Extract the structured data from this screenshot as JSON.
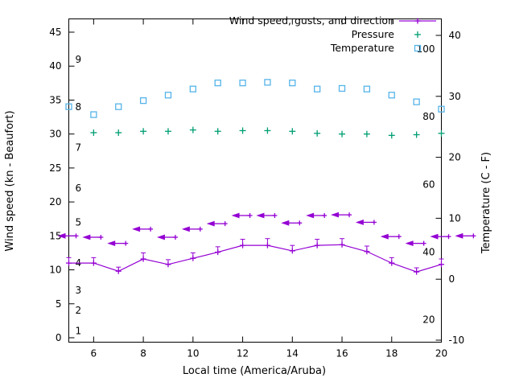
{
  "chart_data": {
    "type": "line",
    "xlabel": "Local time (America/Aruba)",
    "ylabel_left": "Wind speed (kn - Beaufort)",
    "ylabel_right": "Temperature (C - F)",
    "xlim": [
      5,
      20
    ],
    "x_ticks": [
      6,
      8,
      10,
      12,
      14,
      16,
      18,
      20
    ],
    "grid": false,
    "background": "#ffffff",
    "border_color": "#000000",
    "wind_axis": {
      "ticks": [
        0,
        5,
        10,
        15,
        20,
        25,
        30,
        35,
        40,
        45
      ],
      "range": [
        0,
        45
      ]
    },
    "beaufort_scale": [
      {
        "label": "1",
        "kn": 1
      },
      {
        "label": "2",
        "kn": 4
      },
      {
        "label": "3",
        "kn": 7
      },
      {
        "label": "4",
        "kn": 11
      },
      {
        "label": "5",
        "kn": 17
      },
      {
        "label": "6",
        "kn": 22
      },
      {
        "label": "7",
        "kn": 28
      },
      {
        "label": "8",
        "kn": 34
      },
      {
        "label": "9",
        "kn": 41
      }
    ],
    "temp_axis": {
      "ticks_c": [
        -10,
        0,
        10,
        20,
        30,
        40
      ],
      "range_c": [
        -10,
        40
      ]
    },
    "fahrenheit_scale": [
      {
        "label": "20",
        "f": 20
      },
      {
        "label": "40",
        "f": 40
      },
      {
        "label": "60",
        "f": 60
      },
      {
        "label": "80",
        "f": 80
      },
      {
        "label": "100",
        "f": 100
      }
    ],
    "legend": {
      "position": "top-right",
      "entries": [
        "Wind speed, gusts, and direction",
        "Pressure",
        "Temperature"
      ]
    },
    "series": [
      {
        "name": "Wind speed, gusts, and direction",
        "color": "#9400d3",
        "axis": "left",
        "style": "linespoints-with-errorbars-and-vectors",
        "x": [
          5,
          6,
          7,
          8,
          9,
          10,
          11,
          12,
          13,
          14,
          15,
          16,
          17,
          18,
          19,
          20
        ],
        "speed_kn": [
          11.0,
          11.0,
          9.8,
          11.6,
          10.8,
          11.7,
          12.6,
          13.6,
          13.6,
          12.8,
          13.6,
          13.7,
          12.7,
          11.0,
          9.7,
          10.8
        ],
        "gust_kn": [
          11.8,
          11.8,
          10.4,
          12.5,
          11.5,
          12.5,
          13.4,
          14.5,
          14.6,
          13.6,
          14.5,
          14.6,
          13.5,
          11.8,
          10.3,
          11.6
        ],
        "direction_arrow_y_kn": [
          15.0,
          14.8,
          13.9,
          16.0,
          14.8,
          16.0,
          16.8,
          18.0,
          18.0,
          16.9,
          18.0,
          18.1,
          17.0,
          14.9,
          13.9,
          14.9
        ],
        "direction_all_arrows_point": "left",
        "extra_arrow": {
          "x": 21,
          "y_kn": 15.0
        }
      },
      {
        "name": "Pressure",
        "color": "#009e73",
        "axis": "left",
        "style": "points-plus",
        "x": [
          6,
          7,
          8,
          9,
          10,
          11,
          12,
          13,
          14,
          15,
          16,
          17,
          18,
          19,
          20
        ],
        "values": [
          30.2,
          30.2,
          30.4,
          30.4,
          30.6,
          30.4,
          30.5,
          30.5,
          30.4,
          30.1,
          30.0,
          30.0,
          29.8,
          29.9,
          30.1
        ]
      },
      {
        "name": "Temperature",
        "color": "#56b4e9",
        "axis": "right",
        "style": "points-open-square",
        "x": [
          5,
          6,
          7,
          8,
          9,
          10,
          11,
          12,
          13,
          14,
          15,
          16,
          17,
          18,
          19,
          20
        ],
        "values_c": [
          28.3,
          27.0,
          28.3,
          29.3,
          30.2,
          31.2,
          32.2,
          32.2,
          32.3,
          32.2,
          31.2,
          31.3,
          31.2,
          30.2,
          29.1,
          27.9
        ]
      }
    ]
  }
}
